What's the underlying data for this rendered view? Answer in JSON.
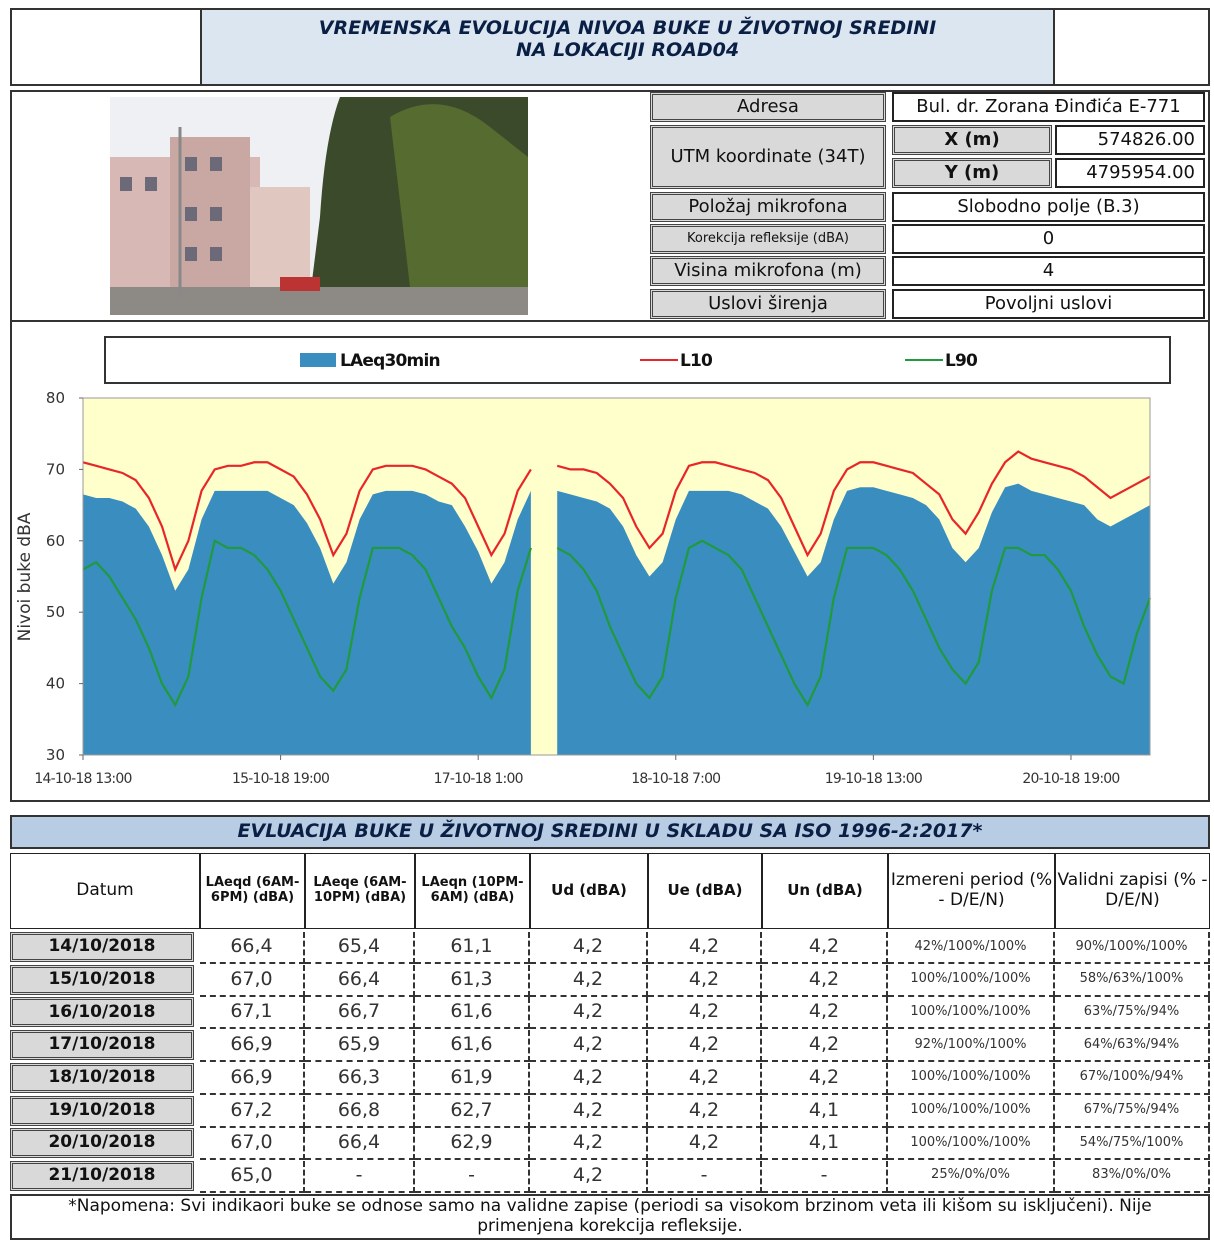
{
  "header": {
    "title_lines": [
      "VREMENSKA EVOLUCIJA NIVOA BUKE U ŽIVOTNOJ SREDINI",
      "NA LOKACIJI ROAD04"
    ]
  },
  "info": {
    "address_label": "Adresa",
    "address": "Bul. dr. Zorana Đinđića E-771",
    "utm_label": "UTM koordinate (34T)",
    "x_label": "X (m)",
    "x_value": "574826.00",
    "y_label": "Y (m)",
    "y_value": "4795954.00",
    "rows": [
      {
        "label": "Položaj mikrofona",
        "value": "Slobodno polje (B.3)"
      },
      {
        "label": "Korekcija refleksije (dBA)",
        "value": "0"
      },
      {
        "label": "Visina mikrofona (m)",
        "value": "4"
      },
      {
        "label": "Uslovi širenja",
        "value": "Povoljni uslovi"
      }
    ]
  },
  "chart_data": {
    "type": "line",
    "y_label": "Nivoi buke dBA",
    "background": "#ffffcc",
    "ylim": [
      30,
      80
    ],
    "yticks": [
      30,
      40,
      50,
      60,
      70,
      80
    ],
    "categories": [
      "14-10-18 13:00",
      null,
      null,
      null,
      null,
      null,
      null,
      null,
      null,
      null,
      null,
      null,
      null,
      null,
      null,
      "15-10-18 19:00",
      null,
      null,
      null,
      null,
      null,
      null,
      null,
      null,
      null,
      null,
      null,
      null,
      null,
      null,
      "17-10-18 1:00",
      null,
      null,
      null,
      null,
      null,
      null,
      null,
      null,
      null,
      null,
      null,
      null,
      null,
      null,
      "18-10-18 7:00",
      null,
      null,
      null,
      null,
      null,
      null,
      null,
      null,
      null,
      null,
      null,
      null,
      null,
      null,
      "19-10-18 13:00",
      null,
      null,
      null,
      null,
      null,
      null,
      null,
      null,
      null,
      null,
      null,
      null,
      null,
      null,
      "20-10-18 19:00",
      null,
      null,
      null,
      null,
      null,
      null
    ],
    "series": [
      {
        "name": "LAeq30min",
        "type": "area",
        "color": "#3a8dbf",
        "values": [
          66.5,
          66,
          66,
          65.5,
          64.5,
          62,
          58,
          53,
          56,
          63,
          67,
          67,
          67,
          67,
          67,
          66,
          65,
          62.5,
          59,
          54,
          57,
          63,
          66.5,
          67,
          67,
          67,
          66.5,
          65.5,
          65,
          62,
          58.5,
          54,
          57,
          63,
          67,
          null,
          67,
          66.5,
          66,
          65.5,
          64.5,
          62,
          58,
          55,
          57,
          63,
          67,
          67,
          67,
          67,
          66.5,
          65.5,
          64.5,
          62,
          58.5,
          55,
          57,
          63,
          67,
          67.5,
          67.5,
          67,
          66.5,
          66,
          65,
          63,
          59,
          57,
          59,
          64,
          67.5,
          68,
          67,
          66.5,
          66,
          65.5,
          65,
          63,
          62,
          63,
          64,
          65
        ]
      },
      {
        "name": "L10",
        "type": "line",
        "color": "#e8262a",
        "values": [
          71,
          70.5,
          70,
          69.5,
          68.5,
          66,
          62,
          56,
          60,
          67,
          70,
          70.5,
          70.5,
          71,
          71,
          70,
          69,
          66.5,
          63,
          58,
          61,
          67,
          70,
          70.5,
          70.5,
          70.5,
          70,
          69,
          68,
          66,
          62,
          58,
          61,
          67,
          70,
          null,
          70.5,
          70,
          70,
          69.5,
          68,
          66,
          62,
          59,
          61,
          67,
          70.5,
          71,
          71,
          70.5,
          70,
          69.5,
          68.5,
          66,
          62,
          58,
          61,
          67,
          70,
          71,
          71,
          70.5,
          70,
          69.5,
          68,
          66.5,
          63,
          61,
          64,
          68,
          71,
          72.5,
          71.5,
          71,
          70.5,
          70,
          69,
          67.5,
          66,
          67,
          68,
          69
        ]
      },
      {
        "name": "L90",
        "type": "line",
        "color": "#1f9a3c",
        "values": [
          56,
          57,
          55,
          52,
          49,
          45,
          40,
          37,
          41,
          52,
          60,
          59,
          59,
          58,
          56,
          53,
          49,
          45,
          41,
          39,
          42,
          52,
          59,
          59,
          59,
          58,
          56,
          52,
          48,
          45,
          41,
          38,
          42,
          53,
          59,
          null,
          59,
          58,
          56,
          53,
          48,
          44,
          40,
          38,
          41,
          52,
          59,
          60,
          59,
          58,
          56,
          52,
          48,
          44,
          40,
          37,
          41,
          52,
          59,
          59,
          59,
          58,
          56,
          53,
          49,
          45,
          42,
          40,
          43,
          53,
          59,
          59,
          58,
          58,
          56,
          53,
          48,
          44,
          41,
          40,
          47,
          52
        ]
      }
    ]
  },
  "evaluation": {
    "title": "EVLUACIJA BUKE U ŽIVOTNOJ SREDINI U SKLADU SA ISO 1996-2:2017*",
    "headers": [
      "Datum",
      "LAeqd (6AM-6PM) (dBA)",
      "LAeqe (6AM-10PM) (dBA)",
      "LAeqn (10PM-6AM) (dBA)",
      "Ud (dBA)",
      "Ue (dBA)",
      "Un (dBA)",
      "Izmereni period (% - D/E/N)",
      "Validni zapisi (% - D/E/N)"
    ],
    "rows": [
      [
        "14/10/2018",
        "66,4",
        "65,4",
        "61,1",
        "4,2",
        "4,2",
        "4,2",
        "42%/100%/100%",
        "90%/100%/100%"
      ],
      [
        "15/10/2018",
        "67,0",
        "66,4",
        "61,3",
        "4,2",
        "4,2",
        "4,2",
        "100%/100%/100%",
        "58%/63%/100%"
      ],
      [
        "16/10/2018",
        "67,1",
        "66,7",
        "61,6",
        "4,2",
        "4,2",
        "4,2",
        "100%/100%/100%",
        "63%/75%/94%"
      ],
      [
        "17/10/2018",
        "66,9",
        "65,9",
        "61,6",
        "4,2",
        "4,2",
        "4,2",
        "92%/100%/100%",
        "64%/63%/94%"
      ],
      [
        "18/10/2018",
        "66,9",
        "66,3",
        "61,9",
        "4,2",
        "4,2",
        "4,2",
        "100%/100%/100%",
        "67%/100%/94%"
      ],
      [
        "19/10/2018",
        "67,2",
        "66,8",
        "62,7",
        "4,2",
        "4,2",
        "4,1",
        "100%/100%/100%",
        "67%/75%/94%"
      ],
      [
        "20/10/2018",
        "67,0",
        "66,4",
        "62,9",
        "4,2",
        "4,2",
        "4,1",
        "100%/100%/100%",
        "54%/75%/100%"
      ],
      [
        "21/10/2018",
        "65,0",
        "-",
        "-",
        "4,2",
        "-",
        "-",
        "25%/0%/0%",
        "83%/0%/0%"
      ]
    ],
    "note": "*Napomena: Svi indikaori buke se odnose samo na validne zapise (periodi sa visokom brzinom veta ili kišom su isključeni). Nije primenjena korekcija refleksije."
  }
}
